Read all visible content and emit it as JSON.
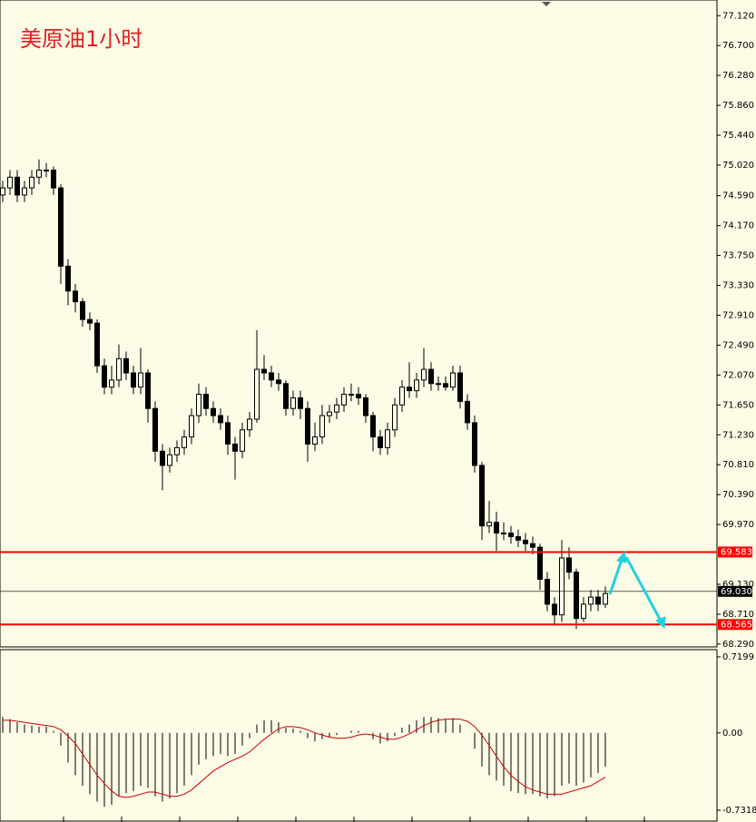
{
  "chart_data": [
    {
      "type": "candlestick",
      "title": "美原油1小时",
      "open": [
        74.6,
        74.7,
        74.85,
        74.6,
        74.7,
        74.85,
        74.95,
        74.95,
        74.7,
        73.6,
        73.25,
        73.1,
        72.85,
        72.8,
        72.2,
        71.9,
        72.0,
        72.3,
        72.1,
        71.9,
        72.1,
        71.6,
        71.0,
        70.8,
        70.95,
        71.05,
        71.2,
        71.5,
        71.8,
        71.6,
        71.5,
        71.4,
        71.1,
        71.0,
        71.3,
        71.45,
        72.15,
        72.1,
        72.0,
        71.95,
        71.6,
        71.75,
        71.6,
        71.1,
        71.2,
        71.5,
        71.55,
        71.65,
        71.8,
        71.8,
        71.75,
        71.5,
        71.2,
        71.05,
        71.3,
        71.65,
        71.9,
        71.85,
        72.0,
        72.15,
        71.95,
        71.95,
        71.9,
        72.1,
        71.7,
        71.4,
        70.8,
        69.95,
        70.0,
        69.85,
        69.85,
        69.8,
        69.75,
        69.7,
        69.65,
        69.2,
        68.85,
        68.7,
        69.5,
        69.3,
        68.65,
        68.85,
        68.95,
        68.85
      ],
      "high": [
        74.8,
        74.95,
        74.95,
        74.8,
        74.95,
        75.1,
        75.05,
        75.0,
        74.75,
        73.7,
        73.35,
        73.15,
        72.95,
        72.85,
        72.3,
        72.2,
        72.5,
        72.4,
        72.2,
        72.45,
        72.15,
        71.7,
        71.1,
        71.05,
        71.15,
        71.3,
        71.6,
        71.95,
        71.9,
        71.7,
        71.6,
        71.5,
        71.2,
        71.4,
        71.55,
        72.7,
        72.35,
        72.2,
        72.1,
        72.0,
        71.85,
        71.85,
        71.7,
        71.4,
        71.65,
        71.65,
        71.75,
        71.9,
        71.95,
        71.9,
        71.8,
        71.55,
        71.3,
        71.4,
        71.75,
        72.0,
        72.25,
        72.1,
        72.45,
        72.25,
        72.05,
        72.05,
        72.2,
        72.2,
        71.8,
        71.5,
        70.85,
        70.3,
        70.15,
        70.0,
        69.95,
        69.9,
        69.85,
        69.8,
        69.7,
        69.3,
        68.95,
        69.75,
        69.65,
        69.35,
        68.95,
        69.05,
        69.05,
        69.1
      ],
      "low": [
        74.5,
        74.6,
        74.5,
        74.5,
        74.6,
        74.75,
        74.85,
        74.6,
        73.35,
        73.05,
        72.95,
        72.75,
        72.7,
        72.1,
        71.8,
        71.8,
        71.9,
        72.0,
        71.8,
        71.8,
        71.4,
        70.85,
        70.45,
        70.7,
        70.85,
        70.95,
        71.1,
        71.4,
        71.5,
        71.4,
        71.3,
        70.95,
        70.6,
        70.9,
        71.2,
        71.4,
        72.0,
        71.9,
        71.85,
        71.5,
        71.5,
        71.45,
        70.85,
        71.0,
        71.1,
        71.4,
        71.45,
        71.55,
        71.7,
        71.65,
        71.4,
        71.0,
        70.95,
        70.95,
        71.2,
        71.55,
        71.75,
        71.75,
        71.9,
        71.85,
        71.85,
        71.85,
        71.85,
        71.6,
        71.3,
        70.7,
        69.75,
        69.85,
        69.6,
        69.75,
        69.7,
        69.65,
        69.6,
        69.55,
        69.05,
        68.75,
        68.55,
        68.6,
        69.2,
        68.5,
        68.6,
        68.75,
        68.75,
        68.8
      ],
      "close": [
        74.7,
        74.85,
        74.6,
        74.7,
        74.85,
        74.95,
        74.95,
        74.7,
        73.6,
        73.25,
        73.1,
        72.85,
        72.8,
        72.2,
        71.9,
        72.0,
        72.3,
        72.1,
        71.9,
        72.1,
        71.6,
        71.0,
        70.8,
        70.95,
        71.05,
        71.2,
        71.5,
        71.8,
        71.6,
        71.5,
        71.4,
        71.1,
        71.0,
        71.3,
        71.45,
        72.15,
        72.1,
        72.0,
        71.95,
        71.6,
        71.75,
        71.6,
        71.1,
        71.2,
        71.5,
        71.55,
        71.65,
        71.8,
        71.8,
        71.75,
        71.5,
        71.2,
        71.05,
        71.3,
        71.65,
        71.9,
        71.85,
        72.0,
        72.15,
        71.95,
        71.95,
        71.9,
        72.1,
        71.7,
        71.4,
        70.8,
        69.95,
        70.0,
        69.85,
        69.85,
        69.8,
        69.75,
        69.7,
        69.65,
        69.2,
        68.85,
        68.7,
        69.5,
        69.3,
        68.65,
        68.85,
        68.95,
        68.85,
        69.0
      ],
      "ylim": [
        68.25,
        77.34
      ],
      "yticks": [
        {
          "value": 77.12,
          "label": "77.120"
        },
        {
          "value": 76.7,
          "label": "76.700"
        },
        {
          "value": 76.28,
          "label": "76.280"
        },
        {
          "value": 75.86,
          "label": "75.860"
        },
        {
          "value": 75.44,
          "label": "75.440"
        },
        {
          "value": 75.02,
          "label": "75.020"
        },
        {
          "value": 74.59,
          "label": "74.590"
        },
        {
          "value": 74.17,
          "label": "74.170"
        },
        {
          "value": 73.75,
          "label": "73.750"
        },
        {
          "value": 73.33,
          "label": "73.330"
        },
        {
          "value": 72.91,
          "label": "72.910"
        },
        {
          "value": 72.49,
          "label": "72.490"
        },
        {
          "value": 72.07,
          "label": "72.070"
        },
        {
          "value": 71.65,
          "label": "71.650"
        },
        {
          "value": 71.23,
          "label": "71.230"
        },
        {
          "value": 70.81,
          "label": "70.810"
        },
        {
          "value": 70.39,
          "label": "70.390"
        },
        {
          "value": 69.97,
          "label": "69.970"
        },
        {
          "value": 69.13,
          "label": "69.130"
        },
        {
          "value": 68.71,
          "label": "68.710"
        },
        {
          "value": 68.29,
          "label": "68.290"
        }
      ],
      "levels": [
        {
          "value": 69.583,
          "label": "69.583",
          "color": "#ff0000"
        },
        {
          "value": 69.03,
          "label": "69.030",
          "color": "#000000"
        },
        {
          "value": 68.565,
          "label": "68.565",
          "color": "#ff0000"
        }
      ]
    },
    {
      "type": "macd",
      "histogram": [
        0.15,
        0.13,
        0.1,
        0.08,
        0.07,
        0.06,
        0.06,
        0.02,
        -0.12,
        -0.28,
        -0.4,
        -0.5,
        -0.58,
        -0.65,
        -0.7,
        -0.68,
        -0.6,
        -0.57,
        -0.55,
        -0.5,
        -0.52,
        -0.6,
        -0.65,
        -0.62,
        -0.57,
        -0.5,
        -0.4,
        -0.3,
        -0.25,
        -0.22,
        -0.2,
        -0.22,
        -0.2,
        -0.12,
        -0.05,
        0.08,
        0.12,
        0.12,
        0.1,
        0.05,
        0.04,
        0.02,
        -0.05,
        -0.08,
        -0.06,
        -0.04,
        -0.02,
        0.0,
        0.02,
        0.02,
        0.0,
        -0.06,
        -0.1,
        -0.08,
        -0.03,
        0.05,
        0.08,
        0.12,
        0.15,
        0.15,
        0.14,
        0.13,
        0.14,
        0.08,
        0.0,
        -0.15,
        -0.32,
        -0.4,
        -0.45,
        -0.5,
        -0.55,
        -0.57,
        -0.58,
        -0.58,
        -0.6,
        -0.62,
        -0.6,
        -0.5,
        -0.48,
        -0.5,
        -0.47,
        -0.42,
        -0.38,
        -0.32
      ],
      "signal": [
        0.12,
        0.12,
        0.11,
        0.1,
        0.09,
        0.08,
        0.07,
        0.06,
        0.03,
        -0.03,
        -0.1,
        -0.2,
        -0.3,
        -0.4,
        -0.48,
        -0.55,
        -0.6,
        -0.61,
        -0.6,
        -0.58,
        -0.56,
        -0.56,
        -0.58,
        -0.6,
        -0.6,
        -0.58,
        -0.54,
        -0.48,
        -0.42,
        -0.36,
        -0.32,
        -0.28,
        -0.25,
        -0.22,
        -0.18,
        -0.12,
        -0.06,
        -0.01,
        0.04,
        0.06,
        0.06,
        0.05,
        0.03,
        0.0,
        -0.02,
        -0.04,
        -0.05,
        -0.05,
        -0.04,
        -0.02,
        -0.01,
        -0.02,
        -0.04,
        -0.06,
        -0.06,
        -0.04,
        -0.01,
        0.03,
        0.07,
        0.1,
        0.12,
        0.13,
        0.13,
        0.13,
        0.11,
        0.06,
        -0.02,
        -0.12,
        -0.22,
        -0.32,
        -0.4,
        -0.46,
        -0.51,
        -0.54,
        -0.56,
        -0.58,
        -0.58,
        -0.58,
        -0.56,
        -0.54,
        -0.52,
        -0.5,
        -0.46,
        -0.42
      ],
      "histogram_color": "#000000",
      "signal_color": "#cc0000",
      "ylim": [
        -0.7318,
        0.7199
      ],
      "yticks": [
        0.7199,
        {
          "value": 0,
          "label": "0.00"
        },
        -0.7318
      ]
    }
  ]
}
